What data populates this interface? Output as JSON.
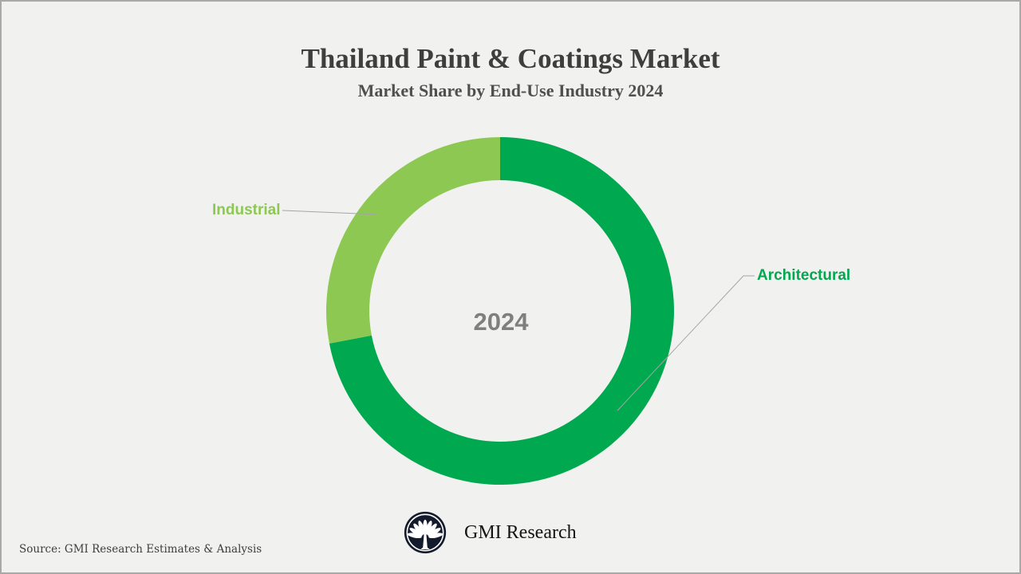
{
  "header": {
    "title": "Thailand Paint & Coatings Market",
    "subtitle": "Market Share by End-Use Industry 2024"
  },
  "chart_data": {
    "type": "pie",
    "variant": "donut",
    "title": "Thailand Paint & Coatings Market",
    "subtitle": "Market Share by End-Use Industry 2024",
    "center_label": "2024",
    "start_angle_deg": 0,
    "direction": "clockwise",
    "inner_radius_ratio": 0.75,
    "values_are_estimates": true,
    "legend_position": "callout-labels",
    "segments": [
      {
        "label": "Architectural",
        "value": 72,
        "color": "#00A94F"
      },
      {
        "label": "Industrial",
        "value": 28,
        "color": "#8DC853"
      }
    ]
  },
  "footer": {
    "brand": "GMI Research",
    "source": "Source: GMI Research Estimates & Analysis"
  },
  "colors": {
    "background": "#F1F1F0",
    "frame_border": "#A9A9A9",
    "title_text": "#3E3E3E",
    "subtitle_text": "#4F4F4F",
    "center_label_text": "#7F7F7F",
    "leader_line": "#A5A5A5",
    "logo_circle": "#141B2C"
  }
}
